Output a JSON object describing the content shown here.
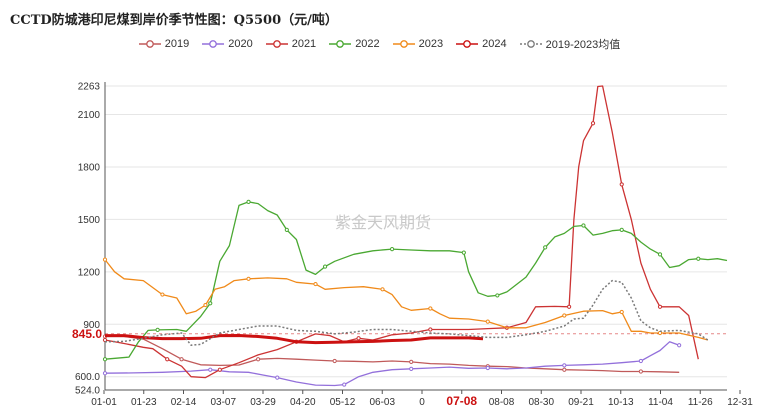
{
  "chart_data": {
    "type": "line",
    "title": "CCTD防城港印尼煤到岸价季节性图：Q5500（元/吨）",
    "watermark": "紫金天风期货",
    "x_ticks": [
      "01-01",
      "01-23",
      "02-14",
      "03-07",
      "03-29",
      "04-20",
      "05-12",
      "06-03",
      "0",
      "07-08",
      "08-08",
      "08-30",
      "09-21",
      "10-13",
      "11-04",
      "11-26",
      "12-31"
    ],
    "x_highlight": "07-08",
    "y_ticks": [
      524.0,
      600.0,
      900,
      1200,
      1500,
      1800,
      2100,
      2263
    ],
    "y_tick_labels": [
      "524.0",
      "600.0",
      "900",
      "1200",
      "1500",
      "1800",
      "2100",
      "2263"
    ],
    "ylim": [
      524,
      2263
    ],
    "marker_label": "845.0",
    "marker_value": 845,
    "grid": "horizontal",
    "legend_position": "top",
    "series": [
      {
        "name": "2019",
        "color": "#c05a5a",
        "dash": "",
        "width": 1.3,
        "points": [
          [
            0,
            830
          ],
          [
            4,
            830
          ],
          [
            8,
            815
          ],
          [
            12,
            760
          ],
          [
            16,
            700
          ],
          [
            20,
            668
          ],
          [
            24,
            665
          ],
          [
            28,
            667
          ],
          [
            32,
            700
          ],
          [
            36,
            705
          ],
          [
            40,
            700
          ],
          [
            44,
            695
          ],
          [
            48,
            690
          ],
          [
            52,
            688
          ],
          [
            56,
            685
          ],
          [
            60,
            690
          ],
          [
            64,
            685
          ],
          [
            68,
            675
          ],
          [
            72,
            672
          ],
          [
            76,
            665
          ],
          [
            80,
            660
          ],
          [
            84,
            658
          ],
          [
            88,
            650
          ],
          [
            92,
            645
          ],
          [
            96,
            640
          ],
          [
            100,
            638
          ],
          [
            104,
            635
          ],
          [
            108,
            630
          ],
          [
            112,
            630
          ],
          [
            116,
            628
          ],
          [
            120,
            625
          ]
        ]
      },
      {
        "name": "2020",
        "color": "#9370db",
        "dash": "",
        "width": 1.3,
        "points": [
          [
            0,
            620
          ],
          [
            6,
            622
          ],
          [
            12,
            625
          ],
          [
            18,
            632
          ],
          [
            22,
            640
          ],
          [
            26,
            628
          ],
          [
            30,
            625
          ],
          [
            33,
            610
          ],
          [
            36,
            595
          ],
          [
            40,
            570
          ],
          [
            44,
            552
          ],
          [
            48,
            550
          ],
          [
            50,
            555
          ],
          [
            53,
            600
          ],
          [
            56,
            625
          ],
          [
            60,
            640
          ],
          [
            64,
            645
          ],
          [
            68,
            650
          ],
          [
            72,
            655
          ],
          [
            76,
            648
          ],
          [
            80,
            650
          ],
          [
            84,
            645
          ],
          [
            88,
            650
          ],
          [
            92,
            660
          ],
          [
            96,
            665
          ],
          [
            100,
            668
          ],
          [
            104,
            672
          ],
          [
            108,
            680
          ],
          [
            112,
            690
          ],
          [
            114,
            720
          ],
          [
            116,
            750
          ],
          [
            118,
            800
          ],
          [
            120,
            780
          ]
        ]
      },
      {
        "name": "2021",
        "color": "#cc3333",
        "dash": "",
        "width": 1.3,
        "points": [
          [
            0,
            810
          ],
          [
            4,
            790
          ],
          [
            8,
            768
          ],
          [
            10,
            760
          ],
          [
            13,
            700
          ],
          [
            16,
            660
          ],
          [
            18,
            600
          ],
          [
            21,
            595
          ],
          [
            24,
            640
          ],
          [
            28,
            680
          ],
          [
            32,
            725
          ],
          [
            36,
            755
          ],
          [
            40,
            800
          ],
          [
            44,
            845
          ],
          [
            47,
            835
          ],
          [
            50,
            800
          ],
          [
            53,
            820
          ],
          [
            56,
            810
          ],
          [
            60,
            840
          ],
          [
            64,
            850
          ],
          [
            68,
            870
          ],
          [
            72,
            870
          ],
          [
            76,
            870
          ],
          [
            80,
            875
          ],
          [
            84,
            880
          ],
          [
            88,
            910
          ],
          [
            90,
            1000
          ],
          [
            94,
            1002
          ],
          [
            97,
            1000
          ],
          [
            98,
            1500
          ],
          [
            99,
            1800
          ],
          [
            100,
            1950
          ],
          [
            102,
            2050
          ],
          [
            103,
            2260
          ],
          [
            104,
            2263
          ],
          [
            106,
            2000
          ],
          [
            108,
            1700
          ],
          [
            110,
            1500
          ],
          [
            112,
            1250
          ],
          [
            114,
            1100
          ],
          [
            116,
            1000
          ],
          [
            120,
            1000
          ],
          [
            122,
            950
          ],
          [
            124,
            700
          ]
        ]
      },
      {
        "name": "2022",
        "color": "#4aa832",
        "dash": "",
        "width": 1.3,
        "points": [
          [
            0,
            700
          ],
          [
            5,
            712
          ],
          [
            7,
            800
          ],
          [
            9,
            865
          ],
          [
            11,
            868
          ],
          [
            15,
            870
          ],
          [
            17,
            860
          ],
          [
            20,
            945
          ],
          [
            22,
            1020
          ],
          [
            24,
            1260
          ],
          [
            26,
            1350
          ],
          [
            28,
            1580
          ],
          [
            30,
            1600
          ],
          [
            32,
            1590
          ],
          [
            34,
            1550
          ],
          [
            36,
            1525
          ],
          [
            38,
            1440
          ],
          [
            40,
            1385
          ],
          [
            42,
            1210
          ],
          [
            44,
            1185
          ],
          [
            46,
            1230
          ],
          [
            48,
            1260
          ],
          [
            52,
            1300
          ],
          [
            56,
            1320
          ],
          [
            60,
            1330
          ],
          [
            64,
            1325
          ],
          [
            68,
            1320
          ],
          [
            72,
            1320
          ],
          [
            75,
            1310
          ],
          [
            76,
            1200
          ],
          [
            78,
            1080
          ],
          [
            80,
            1060
          ],
          [
            82,
            1065
          ],
          [
            84,
            1085
          ],
          [
            88,
            1170
          ],
          [
            90,
            1250
          ],
          [
            92,
            1340
          ],
          [
            94,
            1400
          ],
          [
            96,
            1420
          ],
          [
            98,
            1460
          ],
          [
            100,
            1465
          ],
          [
            102,
            1410
          ],
          [
            104,
            1420
          ],
          [
            106,
            1435
          ],
          [
            108,
            1440
          ],
          [
            110,
            1420
          ],
          [
            112,
            1370
          ],
          [
            114,
            1330
          ],
          [
            116,
            1300
          ],
          [
            118,
            1225
          ],
          [
            120,
            1235
          ],
          [
            122,
            1270
          ],
          [
            124,
            1275
          ],
          [
            126,
            1270
          ],
          [
            128,
            1275
          ],
          [
            130,
            1265
          ]
        ]
      },
      {
        "name": "2023",
        "color": "#f08a1a",
        "dash": "",
        "width": 1.3,
        "points": [
          [
            0,
            1270
          ],
          [
            2,
            1200
          ],
          [
            4,
            1160
          ],
          [
            8,
            1150
          ],
          [
            12,
            1070
          ],
          [
            15,
            1050
          ],
          [
            17,
            960
          ],
          [
            19,
            975
          ],
          [
            21,
            1010
          ],
          [
            23,
            1100
          ],
          [
            25,
            1115
          ],
          [
            27,
            1150
          ],
          [
            30,
            1160
          ],
          [
            34,
            1165
          ],
          [
            38,
            1160
          ],
          [
            40,
            1140
          ],
          [
            44,
            1130
          ],
          [
            46,
            1100
          ],
          [
            50,
            1110
          ],
          [
            54,
            1115
          ],
          [
            58,
            1100
          ],
          [
            60,
            1070
          ],
          [
            62,
            1000
          ],
          [
            64,
            980
          ],
          [
            68,
            990
          ],
          [
            70,
            960
          ],
          [
            72,
            935
          ],
          [
            76,
            930
          ],
          [
            80,
            915
          ],
          [
            84,
            880
          ],
          [
            88,
            880
          ],
          [
            92,
            910
          ],
          [
            96,
            950
          ],
          [
            100,
            975
          ],
          [
            104,
            978
          ],
          [
            106,
            960
          ],
          [
            108,
            970
          ],
          [
            110,
            860
          ],
          [
            112,
            860
          ],
          [
            114,
            850
          ],
          [
            116,
            850
          ],
          [
            120,
            850
          ],
          [
            124,
            825
          ],
          [
            126,
            810
          ]
        ]
      },
      {
        "name": "2024",
        "color": "#cc1111",
        "dash": "",
        "width": 3,
        "points": [
          [
            0,
            835
          ],
          [
            4,
            835
          ],
          [
            8,
            824
          ],
          [
            12,
            818
          ],
          [
            16,
            818
          ],
          [
            20,
            820
          ],
          [
            24,
            835
          ],
          [
            28,
            836
          ],
          [
            32,
            830
          ],
          [
            36,
            820
          ],
          [
            40,
            800
          ],
          [
            44,
            795
          ],
          [
            48,
            797
          ],
          [
            52,
            800
          ],
          [
            56,
            802
          ],
          [
            60,
            807
          ],
          [
            64,
            810
          ],
          [
            68,
            822
          ],
          [
            72,
            822
          ],
          [
            76,
            822
          ],
          [
            79,
            817
          ]
        ]
      },
      {
        "name": "2019-2023均值",
        "color": "#7a7a7a",
        "dash": "2,2",
        "width": 1.5,
        "points": [
          [
            0,
            800
          ],
          [
            4,
            802
          ],
          [
            8,
            820
          ],
          [
            12,
            840
          ],
          [
            16,
            850
          ],
          [
            18,
            780
          ],
          [
            20,
            785
          ],
          [
            24,
            850
          ],
          [
            28,
            870
          ],
          [
            32,
            890
          ],
          [
            36,
            890
          ],
          [
            40,
            865
          ],
          [
            44,
            860
          ],
          [
            48,
            845
          ],
          [
            52,
            855
          ],
          [
            56,
            870
          ],
          [
            60,
            870
          ],
          [
            64,
            860
          ],
          [
            68,
            850
          ],
          [
            72,
            845
          ],
          [
            76,
            835
          ],
          [
            80,
            825
          ],
          [
            84,
            825
          ],
          [
            88,
            840
          ],
          [
            92,
            860
          ],
          [
            96,
            890
          ],
          [
            98,
            930
          ],
          [
            100,
            935
          ],
          [
            102,
            1010
          ],
          [
            104,
            1100
          ],
          [
            106,
            1150
          ],
          [
            108,
            1140
          ],
          [
            110,
            1050
          ],
          [
            112,
            920
          ],
          [
            114,
            880
          ],
          [
            116,
            860
          ],
          [
            120,
            865
          ],
          [
            124,
            845
          ],
          [
            126,
            810
          ]
        ]
      }
    ]
  }
}
